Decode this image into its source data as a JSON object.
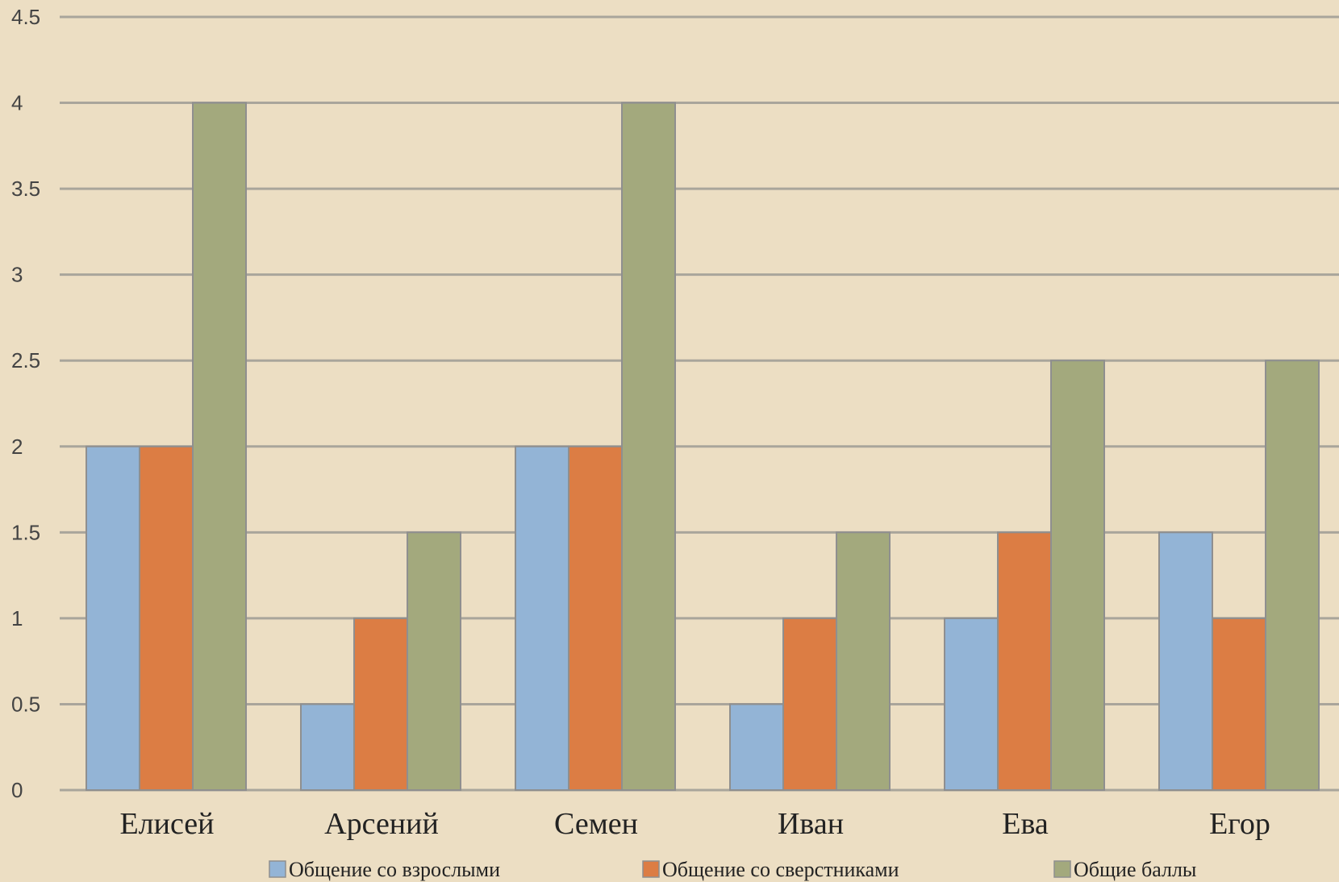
{
  "chart_data": {
    "type": "bar",
    "categories": [
      "Елисей",
      "Арсений",
      "Семен",
      "Иван",
      "Ева",
      "Егор"
    ],
    "series": [
      {
        "name": "Общение со взрослыми",
        "values": [
          2,
          0.5,
          2,
          0.5,
          1,
          1.5
        ],
        "color": "#93b4d6"
      },
      {
        "name": "Общение со сверстниками",
        "values": [
          2,
          1,
          2,
          1,
          1.5,
          1
        ],
        "color": "#dc7d44"
      },
      {
        "name": "Общие баллы",
        "values": [
          4,
          1.5,
          4,
          1.5,
          2.5,
          2.5
        ],
        "color": "#a3a97d"
      }
    ],
    "yticks": [
      "0",
      "0.5",
      "1",
      "1.5",
      "2",
      "2.5",
      "3",
      "3.5",
      "4",
      "4.5"
    ],
    "ylim": [
      0,
      4.5
    ],
    "grid": true,
    "legend_position": "bottom",
    "background_color": "#ecdec3",
    "gridline_color": "#a9a59b",
    "bar_border_color": "#8f8f8f"
  }
}
